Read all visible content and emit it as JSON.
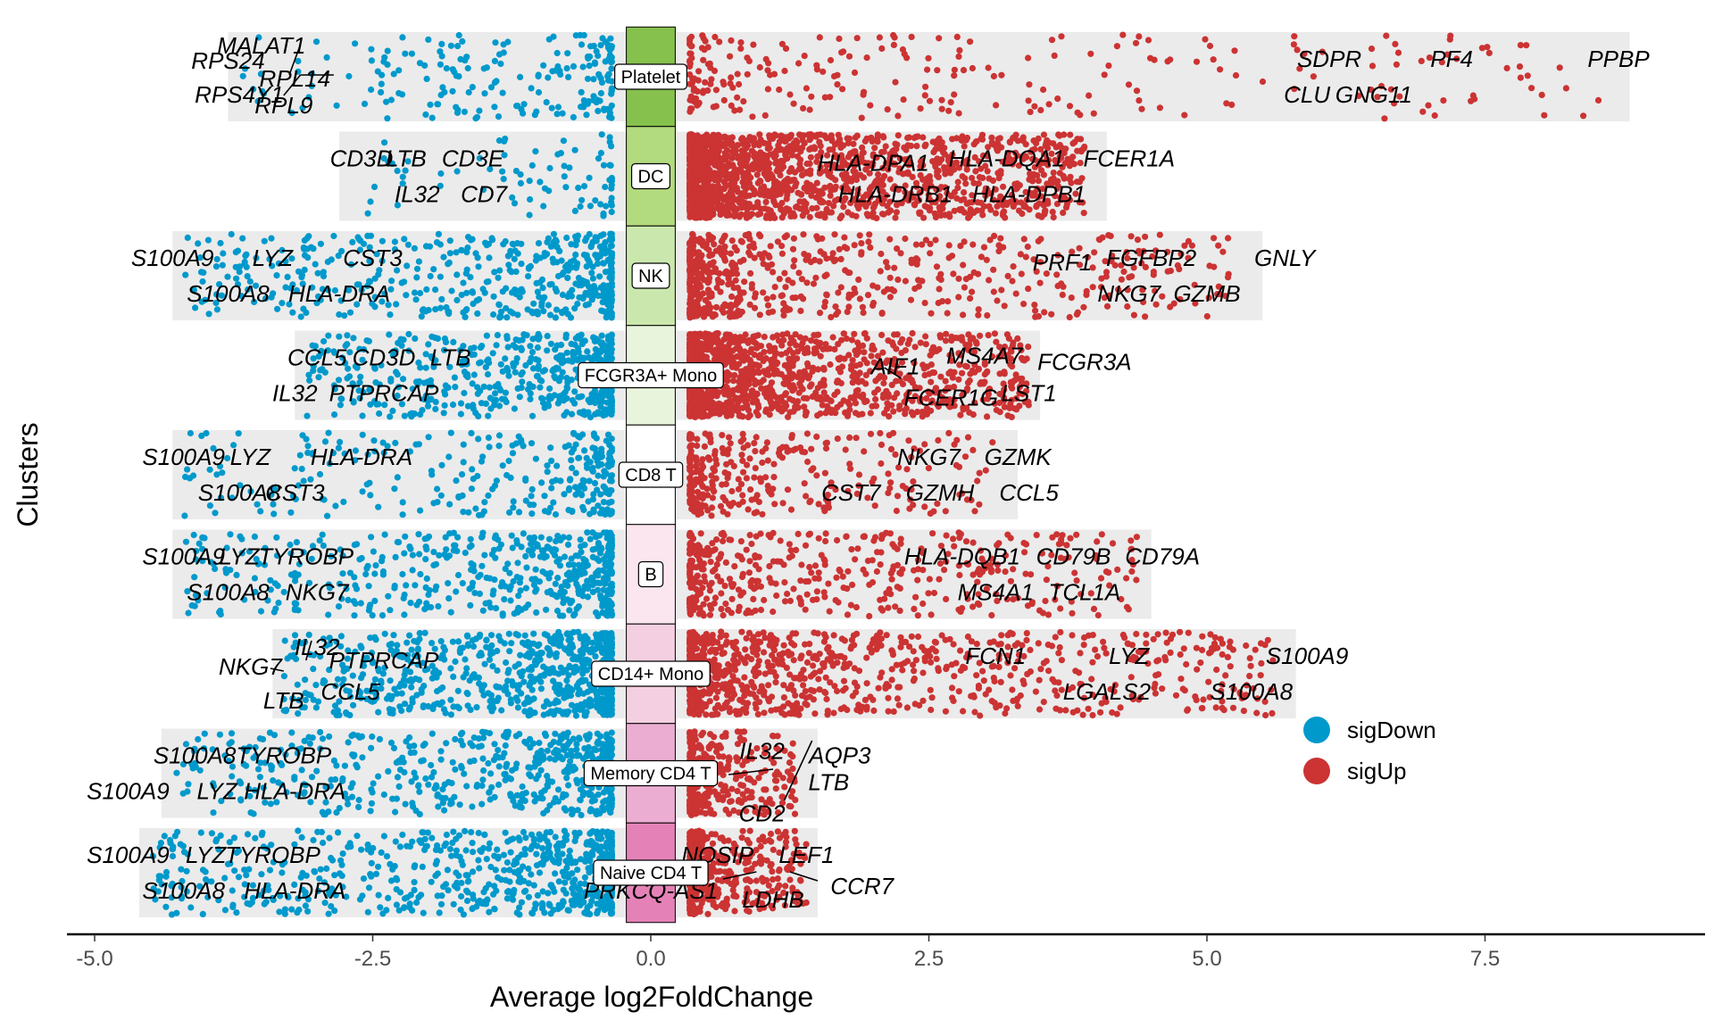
{
  "chart_data": {
    "type": "scatter",
    "title": "",
    "xlabel": "Average log2FoldChange",
    "ylabel": "Clusters",
    "xlim": [
      -5.3,
      9.4
    ],
    "xticks": [
      -5.0,
      -2.5,
      0.0,
      2.5,
      5.0,
      7.5
    ],
    "xtick_labels": [
      "-5.0",
      "-2.5",
      "0.0",
      "2.5",
      "5.0",
      "7.5"
    ],
    "grid": false,
    "legend": {
      "position": "right",
      "entries": [
        {
          "name": "sigDown",
          "color": "#0099cc"
        },
        {
          "name": "sigUp",
          "color": "#cc3333"
        }
      ]
    },
    "clusters": [
      {
        "name": "Platelet",
        "color": "#86c04d",
        "range": [
          -3.8,
          8.8
        ],
        "max_pos": 8.6,
        "n_pos": 260,
        "n_neg": 200,
        "genes": [
          {
            "label": "MALAT1",
            "x": -3.5,
            "y": 0.35
          },
          {
            "label": "RPS24",
            "x": -3.8,
            "y": 0.18
          },
          {
            "label": "RPL14",
            "x": -3.2,
            "y": -0.02
          },
          {
            "label": "RPS4Y1",
            "x": -3.7,
            "y": -0.2
          },
          {
            "label": "RPL9",
            "x": -3.3,
            "y": -0.32
          },
          {
            "label": "SDPR",
            "x": 6.1,
            "y": 0.2
          },
          {
            "label": "PF4",
            "x": 7.2,
            "y": 0.2
          },
          {
            "label": "PPBP",
            "x": 8.7,
            "y": 0.2
          },
          {
            "label": "CLU",
            "x": 5.9,
            "y": -0.2
          },
          {
            "label": "GNG11",
            "x": 6.5,
            "y": -0.2
          }
        ]
      },
      {
        "name": "DC",
        "color": "#b2da7e",
        "range": [
          -2.8,
          4.1
        ],
        "max_pos": 3.9,
        "n_pos": 1700,
        "n_neg": 80,
        "genes": [
          {
            "label": "CD3D",
            "x": -2.6,
            "y": 0.2
          },
          {
            "label": "LTB",
            "x": -2.2,
            "y": 0.2
          },
          {
            "label": "CD3E",
            "x": -1.6,
            "y": 0.2
          },
          {
            "label": "IL32",
            "x": -2.1,
            "y": -0.2
          },
          {
            "label": "CD7",
            "x": -1.5,
            "y": -0.2
          },
          {
            "label": "HLA-DPA1",
            "x": 2.0,
            "y": 0.15
          },
          {
            "label": "HLA-DQA1",
            "x": 3.2,
            "y": 0.2
          },
          {
            "label": "FCER1A",
            "x": 4.3,
            "y": 0.2
          },
          {
            "label": "HLA-DRB1",
            "x": 2.2,
            "y": -0.2
          },
          {
            "label": "HLA-DPB1",
            "x": 3.4,
            "y": -0.2
          }
        ]
      },
      {
        "name": "NK",
        "color": "#cae8ad",
        "range": [
          -4.3,
          5.5
        ],
        "max_pos": 5.3,
        "n_pos": 600,
        "n_neg": 500,
        "genes": [
          {
            "label": "S100A9",
            "x": -4.3,
            "y": 0.2
          },
          {
            "label": "LYZ",
            "x": -3.4,
            "y": 0.2
          },
          {
            "label": "CST3",
            "x": -2.5,
            "y": 0.2
          },
          {
            "label": "S100A8",
            "x": -3.8,
            "y": -0.2
          },
          {
            "label": "HLA-DRA",
            "x": -2.8,
            "y": -0.2
          },
          {
            "label": "PRF1",
            "x": 3.7,
            "y": 0.15
          },
          {
            "label": "FGFBP2",
            "x": 4.5,
            "y": 0.2
          },
          {
            "label": "GNLY",
            "x": 5.7,
            "y": 0.2
          },
          {
            "label": "NKG7",
            "x": 4.3,
            "y": -0.2
          },
          {
            "label": "GZMB",
            "x": 5.0,
            "y": -0.2
          }
        ]
      },
      {
        "name": "FCGR3A+ Mono",
        "color": "#e9f4dd",
        "range": [
          -3.2,
          3.5
        ],
        "max_pos": 3.4,
        "n_pos": 1300,
        "n_neg": 520,
        "genes": [
          {
            "label": "CCL5",
            "x": -3.0,
            "y": 0.2
          },
          {
            "label": "CD3D",
            "x": -2.4,
            "y": 0.2
          },
          {
            "label": "LTB",
            "x": -1.8,
            "y": 0.2
          },
          {
            "label": "IL32",
            "x": -3.2,
            "y": -0.2
          },
          {
            "label": "PTPRCAP",
            "x": -2.4,
            "y": -0.2
          },
          {
            "label": "AIF1",
            "x": 2.2,
            "y": 0.1
          },
          {
            "label": "MS4A7",
            "x": 3.0,
            "y": 0.22
          },
          {
            "label": "FCGR3A",
            "x": 3.9,
            "y": 0.15
          },
          {
            "label": "FCER1G",
            "x": 2.7,
            "y": -0.25
          },
          {
            "label": "LST1",
            "x": 3.4,
            "y": -0.2
          }
        ]
      },
      {
        "name": "CD8 T",
        "color": "#ffffff",
        "range": [
          -4.3,
          3.3
        ],
        "max_pos": 3.1,
        "n_pos": 300,
        "n_neg": 280,
        "genes": [
          {
            "label": "S100A9",
            "x": -4.2,
            "y": 0.2
          },
          {
            "label": "LYZ",
            "x": -3.6,
            "y": 0.2
          },
          {
            "label": "HLA-DRA",
            "x": -2.6,
            "y": 0.2
          },
          {
            "label": "S100A8",
            "x": -3.7,
            "y": -0.2
          },
          {
            "label": "CST3",
            "x": -3.2,
            "y": -0.2
          },
          {
            "label": "NKG7",
            "x": 2.5,
            "y": 0.2
          },
          {
            "label": "GZMK",
            "x": 3.3,
            "y": 0.2
          },
          {
            "label": "CST7",
            "x": 1.8,
            "y": -0.2
          },
          {
            "label": "GZMH",
            "x": 2.6,
            "y": -0.2
          },
          {
            "label": "CCL5",
            "x": 3.4,
            "y": -0.2
          }
        ]
      },
      {
        "name": "B",
        "color": "#fbe6f0",
        "range": [
          -4.3,
          4.5
        ],
        "max_pos": 4.4,
        "n_pos": 460,
        "n_neg": 500,
        "genes": [
          {
            "label": "S100A9",
            "x": -4.2,
            "y": 0.2
          },
          {
            "label": "LYZ",
            "x": -3.7,
            "y": 0.2
          },
          {
            "label": "TYROBP",
            "x": -3.1,
            "y": 0.2
          },
          {
            "label": "S100A8",
            "x": -3.8,
            "y": -0.2
          },
          {
            "label": "NKG7",
            "x": -3.0,
            "y": -0.2
          },
          {
            "label": "HLA-DQB1",
            "x": 2.8,
            "y": 0.2
          },
          {
            "label": "CD79B",
            "x": 3.8,
            "y": 0.2
          },
          {
            "label": "CD79A",
            "x": 4.6,
            "y": 0.2
          },
          {
            "label": "MS4A1",
            "x": 3.1,
            "y": -0.2
          },
          {
            "label": "TCL1A",
            "x": 3.9,
            "y": -0.2
          }
        ]
      },
      {
        "name": "CD14+ Mono",
        "color": "#f4cfe1",
        "range": [
          -3.4,
          5.8
        ],
        "max_pos": 5.6,
        "n_pos": 900,
        "n_neg": 780,
        "genes": [
          {
            "label": "IL32",
            "x": -3.0,
            "y": 0.3
          },
          {
            "label": "NKG7",
            "x": -3.6,
            "y": 0.08
          },
          {
            "label": "PTPRCAP",
            "x": -2.4,
            "y": 0.15
          },
          {
            "label": "LTB",
            "x": -3.3,
            "y": -0.3
          },
          {
            "label": "CCL5",
            "x": -2.7,
            "y": -0.2
          },
          {
            "label": "FCN1",
            "x": 3.1,
            "y": 0.2
          },
          {
            "label": "LYZ",
            "x": 4.3,
            "y": 0.2
          },
          {
            "label": "S100A9",
            "x": 5.9,
            "y": 0.2
          },
          {
            "label": "LGALS2",
            "x": 4.1,
            "y": -0.2
          },
          {
            "label": "S100A8",
            "x": 5.4,
            "y": -0.2
          }
        ]
      },
      {
        "name": "Memory CD4 T",
        "color": "#ecadd2",
        "range": [
          -4.4,
          1.5
        ],
        "max_pos": 1.3,
        "n_pos": 320,
        "n_neg": 560,
        "genes": [
          {
            "label": "S100A8",
            "x": -4.1,
            "y": 0.2
          },
          {
            "label": "TYROBP",
            "x": -3.3,
            "y": 0.2
          },
          {
            "label": "S100A9",
            "x": -4.7,
            "y": -0.2
          },
          {
            "label": "LYZ",
            "x": -3.9,
            "y": -0.2
          },
          {
            "label": "HLA-DRA",
            "x": -3.2,
            "y": -0.2
          },
          {
            "label": "IL32",
            "x": 1.0,
            "y": 0.25
          },
          {
            "label": "AQP3",
            "x": 1.7,
            "y": 0.2
          },
          {
            "label": "LTB",
            "x": 1.6,
            "y": -0.1
          },
          {
            "label": "CD2",
            "x": 1.0,
            "y": -0.45
          }
        ]
      },
      {
        "name": "Naive CD4 T",
        "color": "#e482b7",
        "range": [
          -4.6,
          1.5
        ],
        "max_pos": 1.4,
        "n_pos": 420,
        "n_neg": 700,
        "genes": [
          {
            "label": "S100A9",
            "x": -4.7,
            "y": 0.2
          },
          {
            "label": "LYZ",
            "x": -4.0,
            "y": 0.2
          },
          {
            "label": "TYROBP",
            "x": -3.4,
            "y": 0.2
          },
          {
            "label": "S100A8",
            "x": -4.2,
            "y": -0.2
          },
          {
            "label": "HLA-DRA",
            "x": -3.2,
            "y": -0.2
          },
          {
            "label": "NOSIP",
            "x": 0.6,
            "y": 0.2
          },
          {
            "label": "LEF1",
            "x": 1.4,
            "y": 0.2
          },
          {
            "label": "PRKCQ-AS1",
            "x": 0.0,
            "y": -0.2
          },
          {
            "label": "LDHB",
            "x": 1.1,
            "y": -0.3
          },
          {
            "label": "CCR7",
            "x": 1.9,
            "y": -0.15
          }
        ]
      }
    ]
  }
}
